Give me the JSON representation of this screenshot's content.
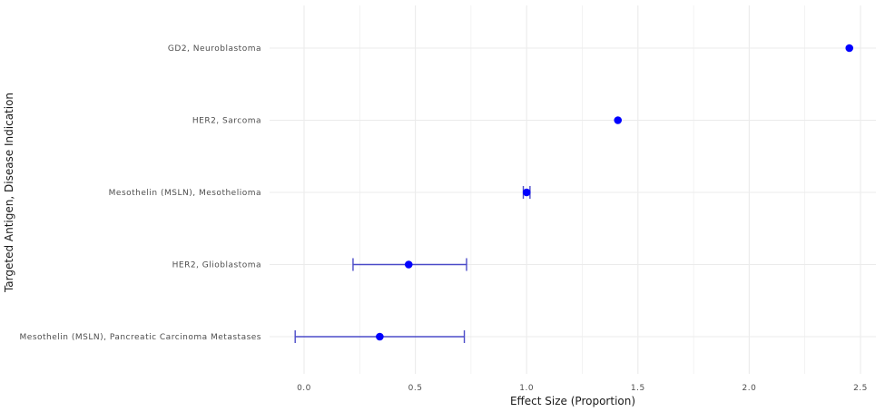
{
  "chart_data": {
    "type": "scatter",
    "subtype": "dot-with-error-bars",
    "title": "",
    "xlabel": "Effect Size (Proportion)",
    "ylabel": "Targeted Antigen, Disease Indication",
    "xlim": [
      -0.1,
      2.55
    ],
    "x_ticks": [
      0.0,
      0.5,
      1.0,
      1.5,
      2.0,
      2.5
    ],
    "x_tick_labels": [
      "0.0",
      "0.5",
      "1.0",
      "1.5",
      "2.0",
      "2.5"
    ],
    "categories": [
      "GD2, Neuroblastoma",
      "HER2, Sarcoma",
      "Mesothelin (MSLN), Mesothelioma",
      "HER2, Glioblastoma",
      "Mesothelin (MSLN), Pancreatic Carcinoma Metastases"
    ],
    "values": [
      2.45,
      1.41,
      1.0,
      0.47,
      0.34
    ],
    "error_low": [
      null,
      null,
      0.985,
      0.22,
      -0.04
    ],
    "error_high": [
      null,
      null,
      1.015,
      0.73,
      0.72
    ],
    "grid": true,
    "legend": "none",
    "point_color": "#0000ff",
    "errorbar_color": "#4b4bc8",
    "grid_color": "#ebebeb"
  }
}
